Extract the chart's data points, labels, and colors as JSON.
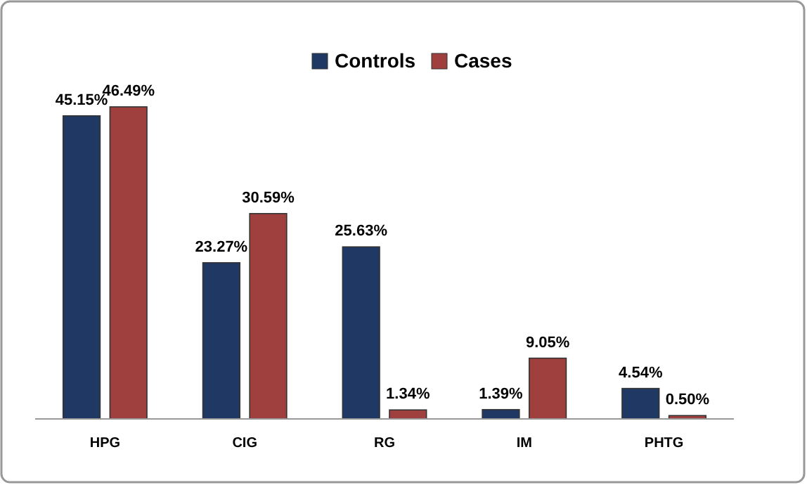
{
  "chart_data": {
    "type": "bar",
    "categories": [
      "HPG",
      "CIG",
      "RG",
      "IM",
      "PHTG"
    ],
    "series": [
      {
        "name": "Controls",
        "color": "#1f3864",
        "values": [
          45.15,
          23.27,
          25.63,
          1.39,
          4.54
        ],
        "value_labels": [
          "45.15%",
          "23.27%",
          "25.63%",
          "1.39%",
          "4.54%"
        ]
      },
      {
        "name": "Cases",
        "color": "#a0403e",
        "values": [
          46.49,
          30.59,
          1.34,
          9.05,
          0.5
        ],
        "value_labels": [
          "46.49%",
          "30.59%",
          "1.34%",
          "9.05%",
          "0.50%"
        ]
      }
    ],
    "legend": "top",
    "grid": false
  }
}
